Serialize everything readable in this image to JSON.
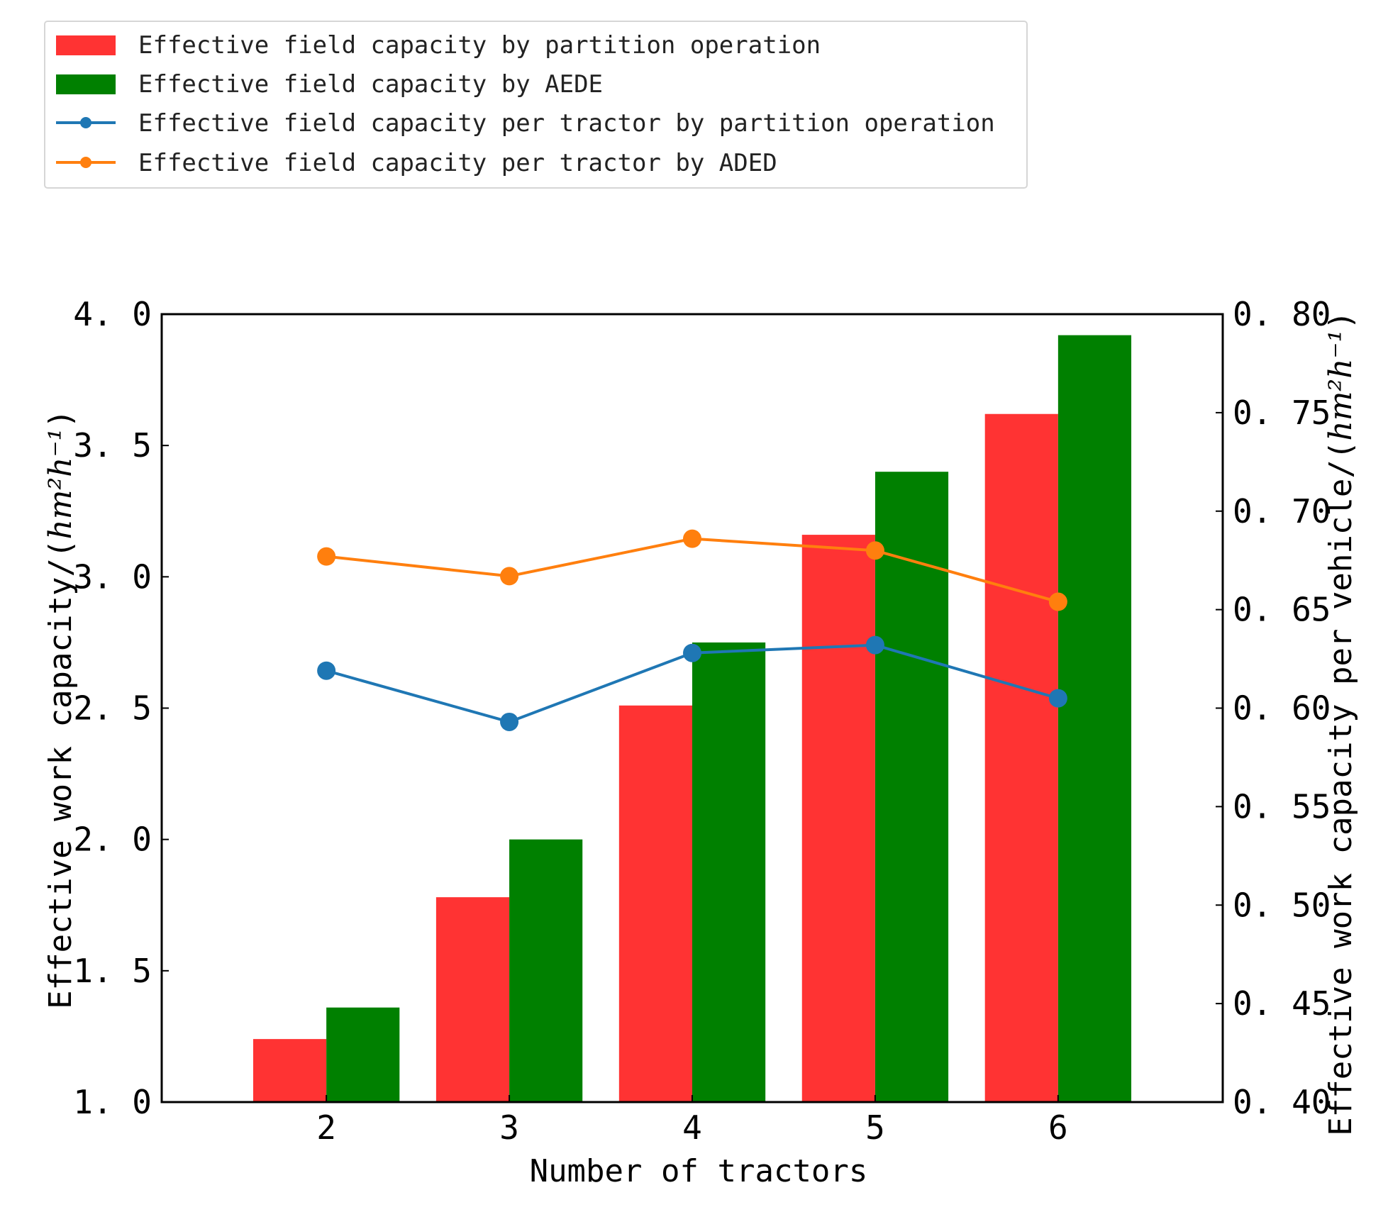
{
  "chart_data": {
    "type": "bar",
    "categories": [
      "2",
      "3",
      "4",
      "5",
      "6"
    ],
    "xlabel": "Number of tractors",
    "ylabel": "Effective work capacity/",
    "ylabel_unit": "hm²h⁻¹",
    "y2label": "Effective work capacity per vehicle/",
    "y2label_unit": "hm²h⁻¹",
    "ylim": [
      1.0,
      4.0
    ],
    "y2lim": [
      0.4,
      0.8
    ],
    "yticks": [
      "1. 0",
      "1. 5",
      "2. 0",
      "2. 5",
      "3. 0",
      "3. 5",
      "4. 0"
    ],
    "y2ticks": [
      "0. 40",
      "0. 45",
      "0. 50",
      "0. 55",
      "0. 60",
      "0. 65",
      "0. 70",
      "0. 75",
      "0. 80"
    ],
    "legend_position": "top-left, outside above plot",
    "series": [
      {
        "name": "Effective field capacity by partition operation",
        "kind": "bar",
        "axis": "left",
        "color": "#ff3333",
        "values": [
          1.24,
          1.78,
          2.51,
          3.16,
          3.62
        ]
      },
      {
        "name": "Effective field capacity by AEDE",
        "kind": "bar",
        "axis": "left",
        "color": "#008000",
        "values": [
          1.36,
          2.0,
          2.75,
          3.4,
          3.92
        ]
      },
      {
        "name": "Effective field capacity per tractor by partition operation",
        "kind": "line",
        "axis": "right",
        "color": "#1f77b4",
        "values": [
          0.619,
          0.593,
          0.628,
          0.632,
          0.605
        ]
      },
      {
        "name": "Effective field capacity per tractor by ADED",
        "kind": "line",
        "axis": "right",
        "color": "#ff7f0e",
        "values": [
          0.677,
          0.667,
          0.686,
          0.68,
          0.654
        ]
      }
    ]
  }
}
